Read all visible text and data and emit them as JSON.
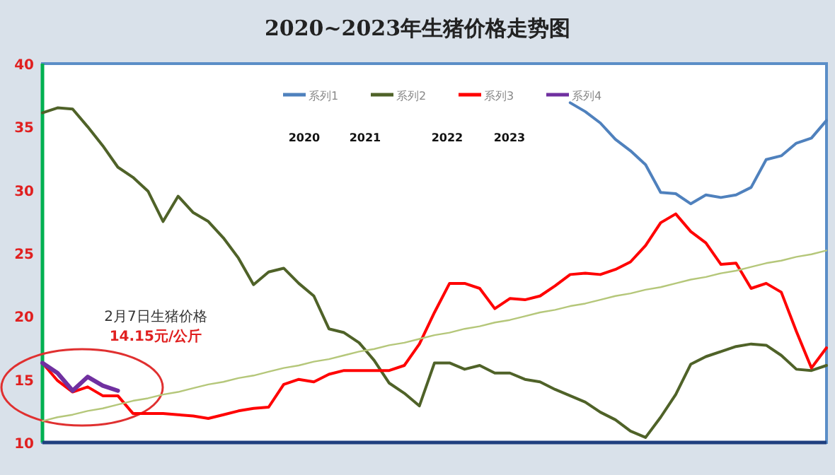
{
  "chart_data": {
    "type": "line",
    "title": "2020~2023年生猪价格走势图",
    "categories": [
      null,
      null,
      null,
      null,
      null,
      null,
      null,
      null,
      null,
      null,
      null,
      null,
      null,
      null,
      null,
      null,
      null,
      null,
      null,
      null,
      null,
      null,
      null,
      null,
      null,
      null,
      null,
      null,
      null,
      null,
      null,
      null,
      null,
      null,
      null,
      null,
      null,
      null,
      null,
      null,
      null,
      null,
      null,
      null,
      null,
      null,
      null,
      null,
      null,
      null,
      null,
      null,
      null
    ],
    "ylim": [
      10,
      40
    ],
    "yticks": [
      10,
      15,
      20,
      25,
      30,
      35,
      40
    ],
    "tick_labels": "y",
    "legend": "top",
    "annotations": [
      "2020",
      "2021",
      "2022",
      "2023",
      "2月7日生猪价格",
      "14.15元/公斤"
    ],
    "series": [
      {
        "name": "系列1",
        "color": "#4f81bd",
        "values": [
          null,
          null,
          null,
          null,
          null,
          null,
          null,
          null,
          null,
          null,
          null,
          null,
          null,
          null,
          null,
          null,
          null,
          null,
          null,
          null,
          null,
          null,
          null,
          null,
          null,
          null,
          null,
          null,
          null,
          null,
          null,
          null,
          null,
          null,
          null,
          36.9,
          36.2,
          35.3,
          34.0,
          33.1,
          32.0,
          29.8,
          29.7,
          28.9,
          29.6,
          29.4,
          29.6,
          30.2,
          32.4,
          32.7,
          33.7,
          34.1,
          35.5
        ]
      },
      {
        "name": "系列2",
        "color": "#4f6228",
        "values": [
          36.1,
          36.5,
          36.4,
          35.0,
          33.5,
          31.8,
          31.0,
          29.9,
          27.5,
          29.5,
          28.2,
          27.5,
          26.2,
          24.6,
          22.5,
          23.5,
          23.8,
          22.6,
          21.6,
          19.0,
          18.7,
          17.9,
          16.5,
          14.7,
          13.9,
          12.9,
          16.3,
          16.3,
          15.8,
          16.1,
          15.5,
          15.5,
          15.0,
          14.8,
          14.2,
          13.7,
          13.2,
          12.4,
          11.8,
          10.9,
          10.4,
          12.0,
          13.8,
          16.2,
          16.8,
          17.2,
          17.6,
          17.8,
          17.7,
          16.9,
          15.8,
          15.7,
          16.1
        ]
      },
      {
        "name": "系列3",
        "color": "#ff0000",
        "values": [
          16.3,
          14.9,
          14.0,
          14.4,
          13.7,
          13.7,
          12.3,
          12.3,
          12.3,
          12.2,
          12.1,
          11.9,
          12.2,
          12.5,
          12.7,
          12.8,
          14.6,
          15.0,
          14.8,
          15.4,
          15.7,
          15.7,
          15.7,
          15.7,
          16.1,
          17.8,
          20.3,
          22.6,
          22.6,
          22.2,
          20.6,
          21.4,
          21.3,
          21.6,
          22.4,
          23.3,
          23.4,
          23.3,
          23.7,
          24.3,
          25.6,
          27.4,
          28.1,
          26.7,
          25.8,
          24.1,
          24.2,
          22.2,
          22.6,
          21.9,
          18.8,
          15.9,
          17.5
        ]
      },
      {
        "name": "系列4",
        "color": "#7030a0",
        "values": [
          16.3,
          15.5,
          14.1,
          15.2,
          14.5,
          14.1,
          null,
          null,
          null,
          null,
          null,
          null,
          null,
          null,
          null,
          null,
          null,
          null,
          null,
          null,
          null,
          null,
          null,
          null,
          null,
          null,
          null,
          null,
          null,
          null,
          null,
          null,
          null,
          null,
          null,
          null,
          null,
          null,
          null,
          null,
          null,
          null,
          null,
          null,
          null,
          null,
          null,
          null,
          null,
          null,
          null,
          null,
          null
        ]
      },
      {
        "color": "#b5c77a",
        "values": [
          11.7,
          12.0,
          12.2,
          12.5,
          12.7,
          13.0,
          13.3,
          13.5,
          13.8,
          14.0,
          14.3,
          14.6,
          14.8,
          15.1,
          15.3,
          15.6,
          15.9,
          16.1,
          16.4,
          16.6,
          16.9,
          17.2,
          17.4,
          17.7,
          17.9,
          18.2,
          18.5,
          18.7,
          19.0,
          19.2,
          19.5,
          19.7,
          20.0,
          20.3,
          20.5,
          20.8,
          21.0,
          21.3,
          21.6,
          21.8,
          22.1,
          22.3,
          22.6,
          22.9,
          23.1,
          23.4,
          23.6,
          23.9,
          24.2,
          24.4,
          24.7,
          24.9,
          25.2
        ]
      }
    ]
  }
}
